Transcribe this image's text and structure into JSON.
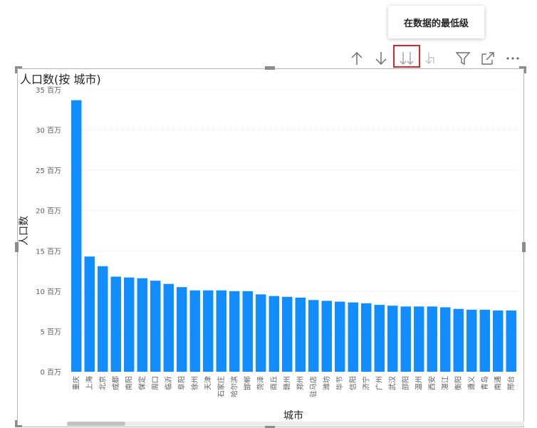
{
  "tooltip": {
    "text": "在数据的最低级"
  },
  "toolbar": {
    "icons": [
      "arrow-up-icon",
      "arrow-down-icon",
      "go-to-lowest-level-icon",
      "expand-all-down-icon",
      "filter-icon",
      "focus-mode-icon",
      "more-options-icon"
    ]
  },
  "chart_data": {
    "type": "bar",
    "title": "人口数(按 城市)",
    "xlabel": "城市",
    "ylabel": "人口数",
    "ylim": [
      0,
      35
    ],
    "yunit": "百万",
    "yticks": [
      0,
      5,
      10,
      15,
      20,
      25,
      30,
      35
    ],
    "ytick_labels": [
      "0 百万",
      "5 百万",
      "10 百万",
      "15 百万",
      "20 百万",
      "25 百万",
      "30 百万",
      "35 百万"
    ],
    "grid": true,
    "bar_color": "#118dff",
    "categories": [
      "重庆",
      "上海",
      "北京",
      "成都",
      "南阳",
      "保定",
      "周口",
      "临沂",
      "阜阳",
      "徐州",
      "天津",
      "石家庄",
      "哈尔滨",
      "邯郸",
      "菏泽",
      "商丘",
      "赣州",
      "郑州",
      "驻马店",
      "潍坊",
      "毕节",
      "信阳",
      "济宁",
      "广州",
      "武汉",
      "邵阳",
      "温州",
      "西安",
      "湛江",
      "衡阳",
      "遵义",
      "青岛",
      "南通",
      "邢台"
    ],
    "values": [
      33.7,
      14.3,
      13.1,
      11.8,
      11.7,
      11.6,
      11.3,
      10.9,
      10.5,
      10.1,
      10.1,
      10.1,
      10.0,
      10.0,
      9.6,
      9.4,
      9.3,
      9.2,
      8.9,
      8.8,
      8.7,
      8.6,
      8.5,
      8.3,
      8.2,
      8.1,
      8.1,
      8.1,
      8.0,
      7.8,
      7.7,
      7.7,
      7.6,
      7.6
    ]
  }
}
